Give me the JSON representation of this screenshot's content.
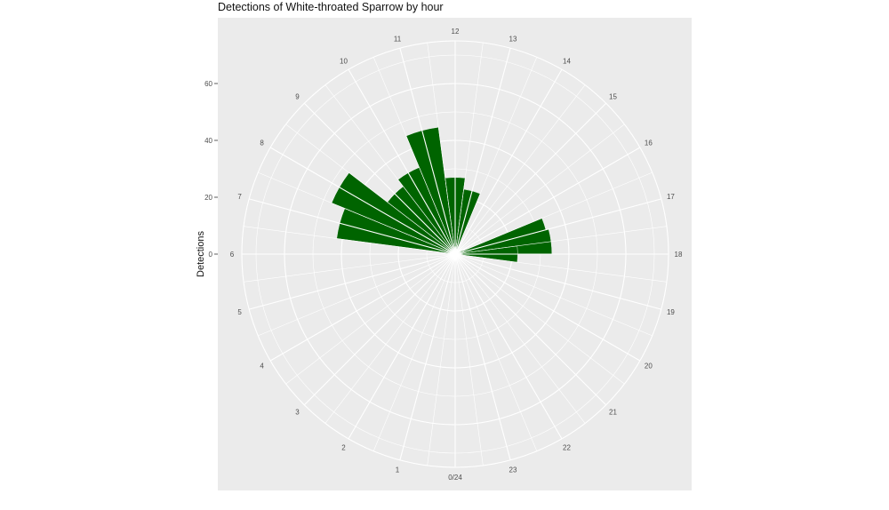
{
  "chart_data": {
    "type": "bar",
    "coordinate_system": "polar",
    "title": "Detections of White-throated Sparrow by hour",
    "xlabel": "",
    "ylabel": "Detections",
    "categories": [
      "0/24",
      "1",
      "2",
      "3",
      "4",
      "5",
      "6",
      "7",
      "8",
      "9",
      "10",
      "11",
      "12",
      "13",
      "14",
      "15",
      "16",
      "17",
      "18",
      "19",
      "20",
      "21",
      "22",
      "23"
    ],
    "values": [
      0,
      0,
      0,
      0,
      0,
      0,
      1,
      42,
      47,
      30,
      33,
      45,
      27,
      23,
      0,
      0,
      0,
      0,
      0,
      0,
      0,
      0,
      0,
      0
    ],
    "extra_bars": [
      {
        "hour": 17,
        "value": 33
      },
      {
        "hour": 17.5,
        "value": 34
      },
      {
        "hour": 18,
        "value": 22
      },
      {
        "hour": 16.5,
        "value": 3
      }
    ],
    "radial_ticks": [
      "0",
      "20",
      "40",
      "60"
    ],
    "radial_tick_values": [
      0,
      20,
      40,
      60
    ],
    "ylim": [
      0,
      75
    ],
    "bar_color": "#006400",
    "panel_color": "#ebebeb",
    "grid_color": "#ffffff",
    "grid": true,
    "legend": "none"
  }
}
